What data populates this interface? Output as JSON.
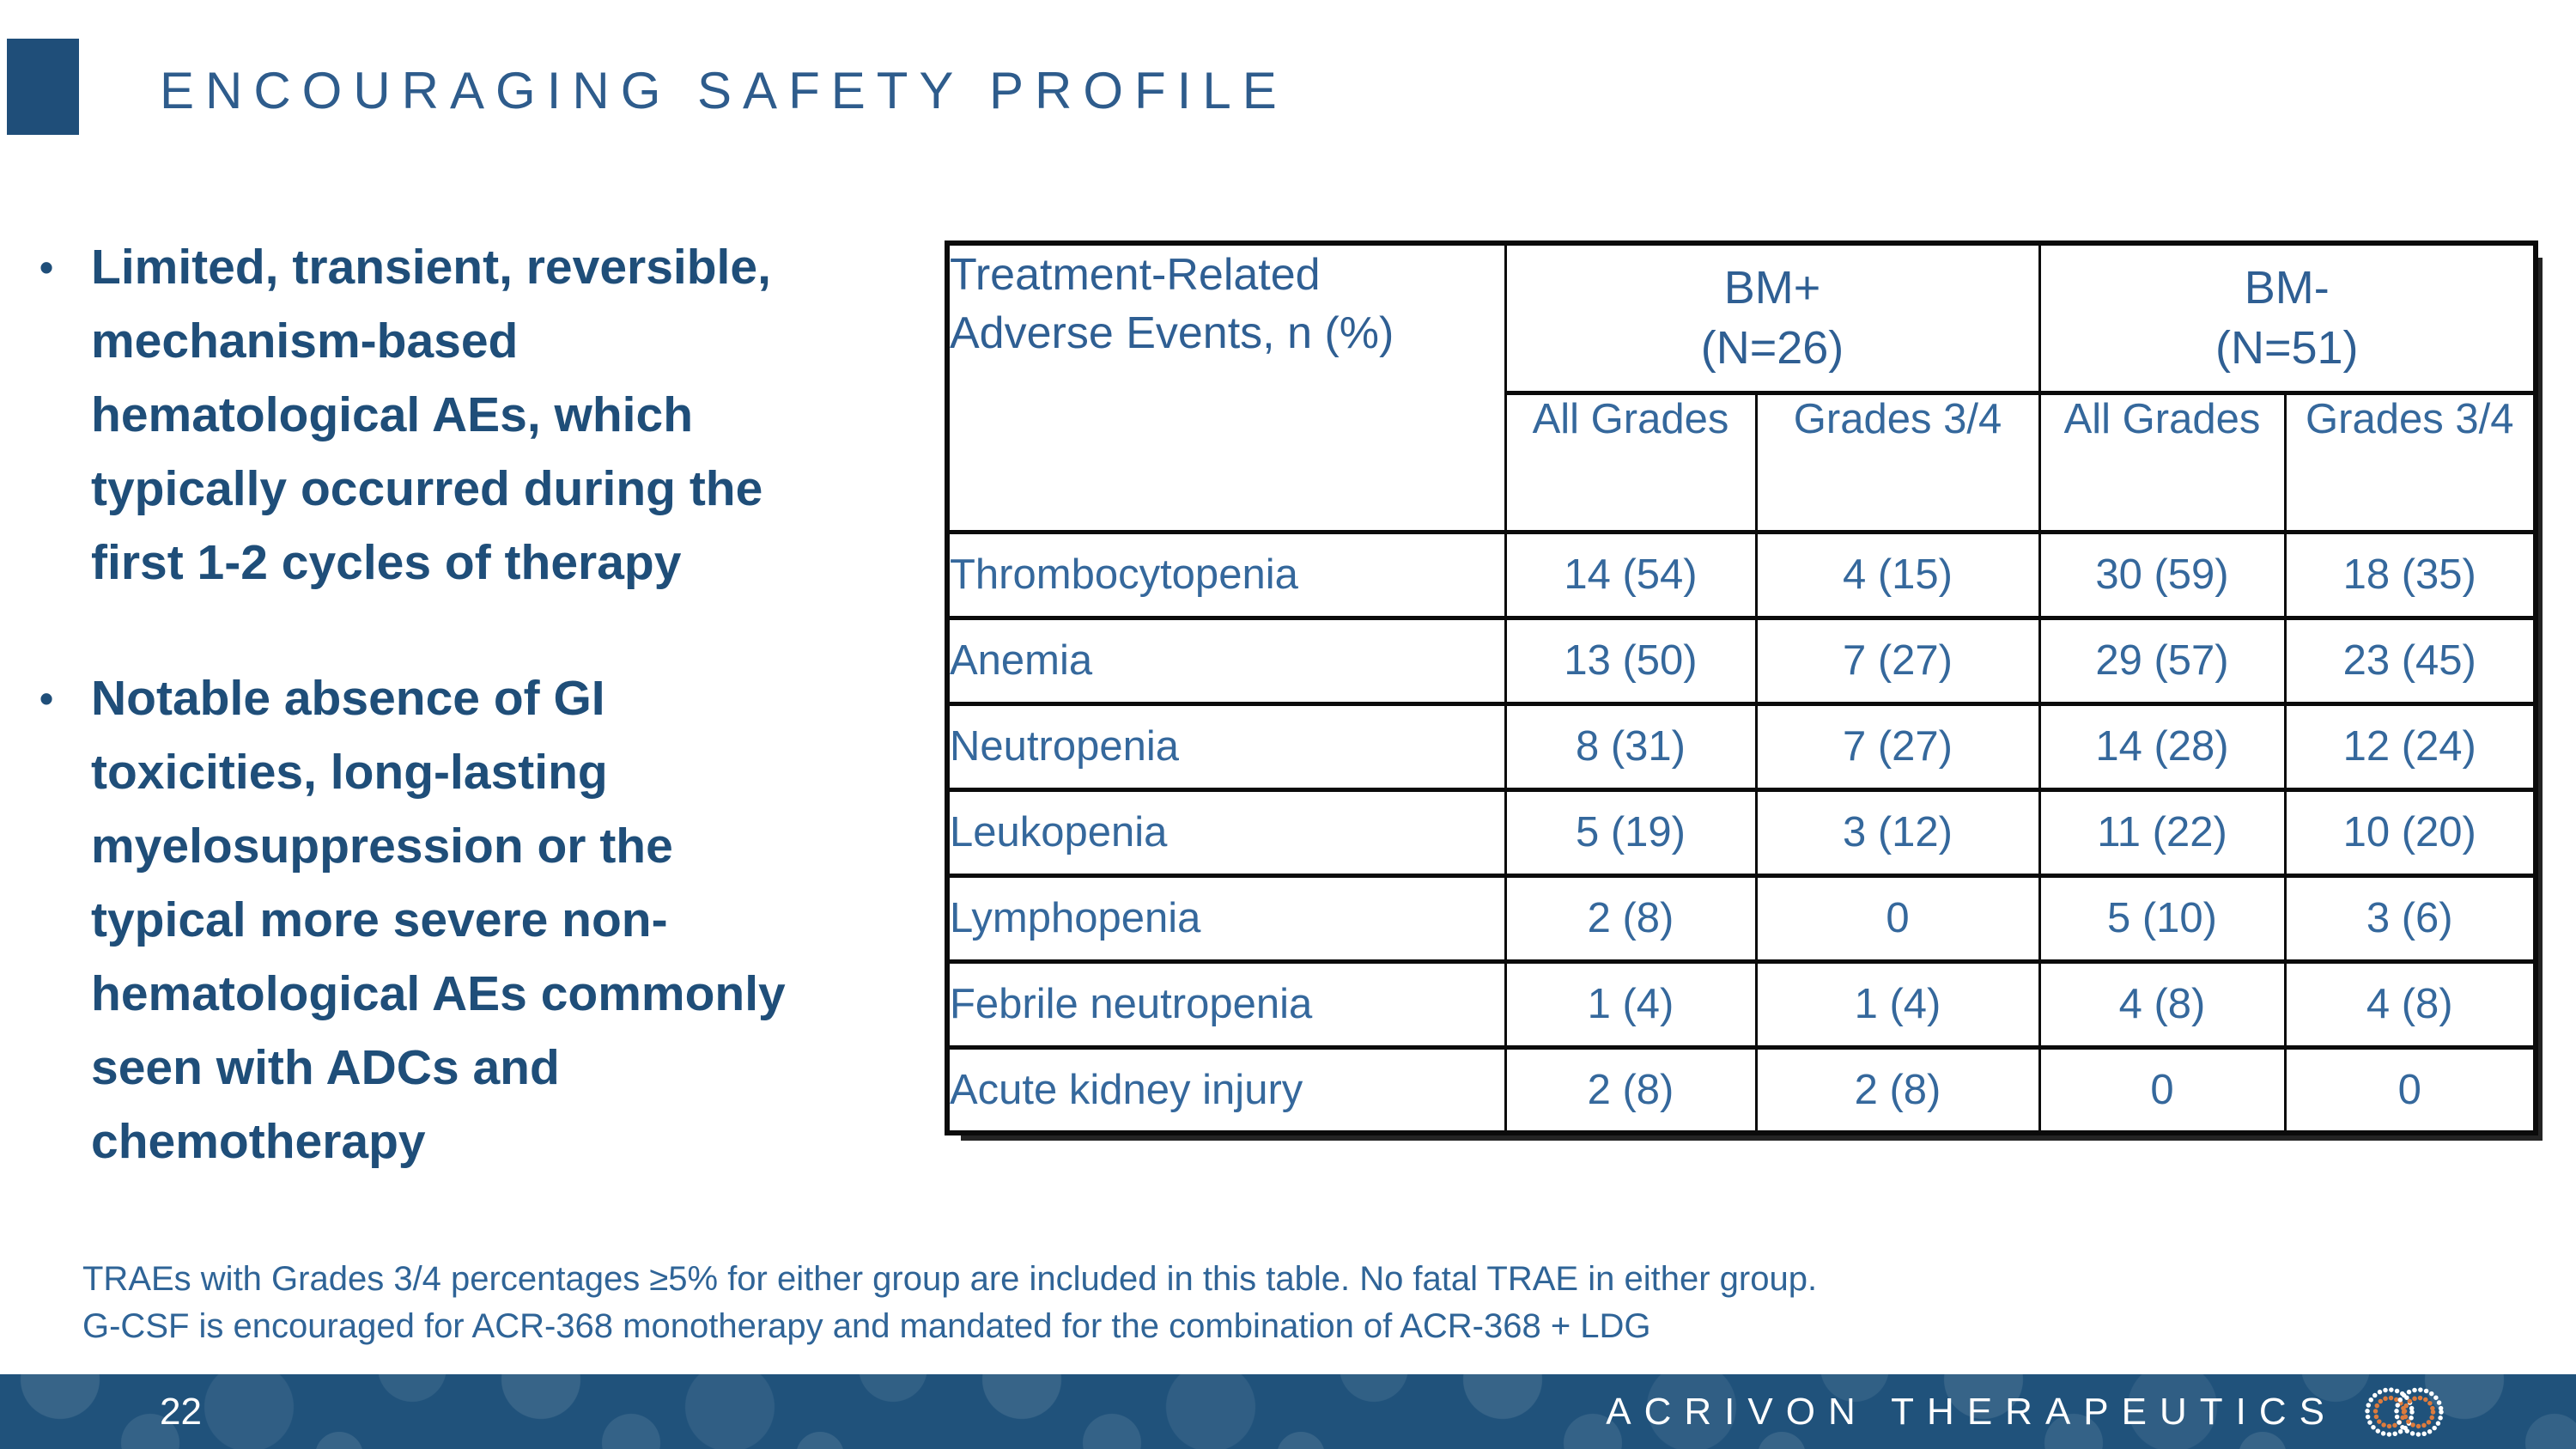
{
  "slide": {
    "title": "ENCOURAGING SAFETY PROFILE",
    "bullet_char": "•"
  },
  "bullets": [
    {
      "text": "Limited, transient, reversible,\nmechanism-based\nhematological AEs, which\ntypically occurred during the\nfirst 1-2 cycles of therapy"
    },
    {
      "text": "Notable absence of GI\ntoxicities, long-lasting\nmyelosuppression or the\ntypical more severe non-\nhematological AEs commonly\nseen with ADCs and\nchemotherapy"
    }
  ],
  "table": {
    "corner_header": "Treatment-Related\nAdverse Events, n (%)",
    "groups": [
      {
        "label": "BM+\n(N=26)"
      },
      {
        "label": "BM-\n(N=51)"
      }
    ],
    "subheaders": [
      "All Grades",
      "Grades 3/4",
      "All Grades",
      "Grades 3/4"
    ],
    "rows": [
      {
        "label": "Thrombocytopenia",
        "values": [
          "14 (54)",
          "4 (15)",
          "30 (59)",
          "18 (35)"
        ]
      },
      {
        "label": "Anemia",
        "values": [
          "13 (50)",
          "7 (27)",
          "29 (57)",
          "23 (45)"
        ]
      },
      {
        "label": "Neutropenia",
        "values": [
          "8 (31)",
          "7 (27)",
          "14 (28)",
          "12 (24)"
        ]
      },
      {
        "label": "Leukopenia",
        "values": [
          "5 (19)",
          "3 (12)",
          "11 (22)",
          "10 (20)"
        ]
      },
      {
        "label": "Lymphopenia",
        "values": [
          "2 (8)",
          "0",
          "5 (10)",
          "3 (6)"
        ]
      },
      {
        "label": "Febrile neutropenia",
        "values": [
          "1 (4)",
          "1 (4)",
          "4 (8)",
          "4 (8)"
        ]
      },
      {
        "label": "Acute kidney injury",
        "values": [
          "2 (8)",
          "2 (8)",
          "0",
          "0"
        ]
      }
    ]
  },
  "footnotes": [
    "TRAEs with Grades 3/4 percentages ≥5% for either group are included in this table. No fatal TRAE in either group.",
    "G-CSF is encouraged for ACR-368 monotherapy and mandated for the combination of ACR-368 + LDG"
  ],
  "footer": {
    "page_number": "22",
    "brand": "ACRIVON THERAPEUTICS",
    "logo_icon": "dotted-rings-logo"
  },
  "colors": {
    "navy_accent": "#1F4E79",
    "title_blue": "#2E5C8C",
    "table_text_blue": "#35689C",
    "table_header_blue": "#2F5F93",
    "footnote_blue": "#2F6497",
    "footer_bar_blue": "#20527B",
    "border_black": "#0B0B0B",
    "logo_orange": "#DD7B3D",
    "logo_white": "#FFFFFF"
  }
}
